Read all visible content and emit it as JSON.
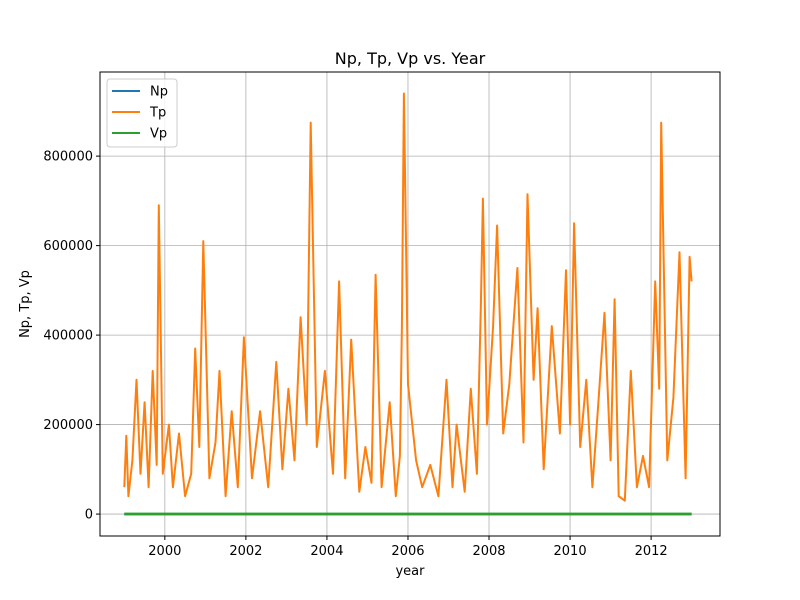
{
  "chart_data": {
    "type": "line",
    "title": "Np, Tp, Vp vs. Year",
    "xlabel": "year",
    "ylabel": "Np, Tp, Vp",
    "xlim": [
      1998.4,
      2013.7
    ],
    "ylim": [
      -49000,
      988000
    ],
    "x_ticks": [
      2000,
      2002,
      2004,
      2006,
      2008,
      2010,
      2012
    ],
    "x_tick_labels": [
      "2000",
      "2002",
      "2004",
      "2006",
      "2008",
      "2010",
      "2012"
    ],
    "y_ticks": [
      0,
      200000,
      400000,
      600000,
      800000
    ],
    "y_tick_labels": [
      "0",
      "200000",
      "400000",
      "600000",
      "800000"
    ],
    "grid": true,
    "legend_position": "top-left",
    "series": [
      {
        "name": "Np",
        "color": "#1f77b4",
        "x": [
          1999.0,
          2013.0
        ],
        "values": [
          5,
          5
        ]
      },
      {
        "name": "Tp",
        "color": "#ff7f0e",
        "x": [
          1999.0,
          1999.05,
          1999.1,
          1999.2,
          1999.3,
          1999.4,
          1999.5,
          1999.6,
          1999.7,
          1999.8,
          1999.85,
          1999.95,
          2000.1,
          2000.2,
          2000.35,
          2000.5,
          2000.65,
          2000.75,
          2000.85,
          2000.95,
          2001.1,
          2001.25,
          2001.35,
          2001.5,
          2001.65,
          2001.8,
          2001.95,
          2002.15,
          2002.35,
          2002.55,
          2002.75,
          2002.9,
          2003.05,
          2003.2,
          2003.35,
          2003.5,
          2003.6,
          2003.75,
          2003.95,
          2004.15,
          2004.3,
          2004.45,
          2004.6,
          2004.8,
          2004.95,
          2005.1,
          2005.2,
          2005.35,
          2005.55,
          2005.7,
          2005.8,
          2005.85,
          2005.9,
          2006.0,
          2006.2,
          2006.35,
          2006.55,
          2006.75,
          2006.95,
          2007.1,
          2007.2,
          2007.4,
          2007.55,
          2007.7,
          2007.8,
          2007.85,
          2007.95,
          2008.1,
          2008.2,
          2008.35,
          2008.5,
          2008.7,
          2008.85,
          2008.95,
          2009.1,
          2009.2,
          2009.35,
          2009.55,
          2009.75,
          2009.9,
          2010.0,
          2010.1,
          2010.25,
          2010.4,
          2010.55,
          2010.7,
          2010.85,
          2011.0,
          2011.1,
          2011.2,
          2011.35,
          2011.5,
          2011.65,
          2011.8,
          2011.95,
          2012.1,
          2012.2,
          2012.25,
          2012.4,
          2012.55,
          2012.7,
          2012.85,
          2012.95,
          2013.0
        ],
        "values": [
          60000,
          175000,
          40000,
          120000,
          300000,
          90000,
          250000,
          60000,
          320000,
          110000,
          690000,
          90000,
          200000,
          60000,
          180000,
          40000,
          90000,
          370000,
          150000,
          610000,
          80000,
          160000,
          320000,
          40000,
          230000,
          60000,
          395000,
          80000,
          230000,
          60000,
          340000,
          100000,
          280000,
          120000,
          440000,
          200000,
          875000,
          150000,
          320000,
          90000,
          520000,
          80000,
          390000,
          50000,
          150000,
          70000,
          535000,
          60000,
          250000,
          40000,
          130000,
          420000,
          940000,
          290000,
          120000,
          60000,
          110000,
          40000,
          300000,
          60000,
          200000,
          50000,
          280000,
          90000,
          470000,
          705000,
          200000,
          420000,
          645000,
          180000,
          290000,
          550000,
          160000,
          715000,
          300000,
          460000,
          100000,
          420000,
          180000,
          545000,
          200000,
          650000,
          150000,
          300000,
          60000,
          250000,
          450000,
          120000,
          480000,
          40000,
          30000,
          320000,
          60000,
          130000,
          60000,
          520000,
          280000,
          875000,
          120000,
          260000,
          585000,
          80000,
          575000,
          520000
        ]
      },
      {
        "name": "Vp",
        "color": "#2ca02c",
        "x": [
          1999.0,
          2013.0
        ],
        "values": [
          500,
          500
        ]
      }
    ]
  }
}
